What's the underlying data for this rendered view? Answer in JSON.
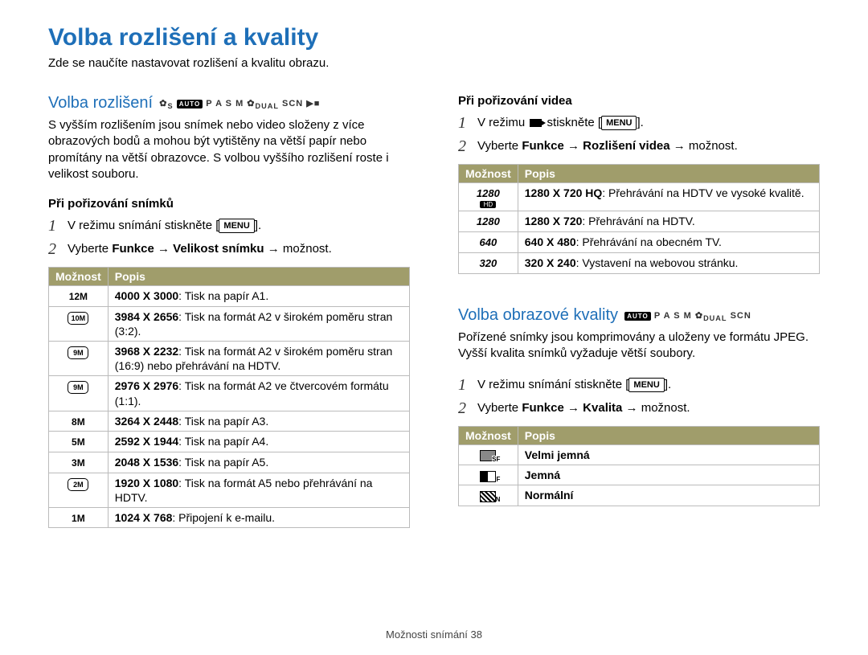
{
  "page": {
    "title": "Volba rozlišení a kvality",
    "intro": "Zde se naučíte nastavovat rozlišení a kvalitu obrazu.",
    "footer_label": "Možnosti snímání",
    "footer_page": "38"
  },
  "left": {
    "section_title": "Volba rozlišení",
    "mode_string": "P A S M",
    "mode_suffix": "SCN",
    "body": "S vyšším rozlišením jsou snímek nebo video složeny z více obrazových bodů a mohou být vytištěny na větší papír nebo promítány na větší obrazovce. S volbou vyššího rozlišení roste i velikost souboru.",
    "sub_heading": "Při pořizování snímků",
    "step1": "V režimu snímání stiskněte",
    "step1_btn": "MENU",
    "step2_pre": "Vyberte ",
    "step2_b1": "Funkce",
    "step2_arrow": " → ",
    "step2_b2": "Velikost snímku",
    "step2_post": " → možnost.",
    "table": {
      "col_option": "Možnost",
      "col_desc": "Popis",
      "rows": [
        {
          "icon": "12M",
          "bold": "4000 X 3000",
          "desc": ": Tisk na papír A1."
        },
        {
          "icon": "10M",
          "boxed": true,
          "bold": "3984 X 2656",
          "desc": ": Tisk na formát A2 v širokém poměru stran (3:2)."
        },
        {
          "icon": "9M",
          "boxed": true,
          "bold": "3968 X 2232",
          "desc": ": Tisk na formát A2 v širokém poměru stran (16:9) nebo přehrávání na HDTV."
        },
        {
          "icon": "9M",
          "boxed": true,
          "bold": "2976 X 2976",
          "desc": ": Tisk na formát A2 ve čtvercovém formátu (1:1)."
        },
        {
          "icon": "8M",
          "bold": "3264 X 2448",
          "desc": ": Tisk na papír A3."
        },
        {
          "icon": "5M",
          "bold": "2592 X 1944",
          "desc": ": Tisk na papír A4."
        },
        {
          "icon": "3M",
          "bold": "2048 X 1536",
          "desc": ": Tisk na papír A5."
        },
        {
          "icon": "2M",
          "boxed": true,
          "bold": "1920 X 1080",
          "desc": ": Tisk na formát A5 nebo přehrávání na HDTV."
        },
        {
          "icon": "1M",
          "bold": "1024 X 768",
          "desc": ": Připojení k e-mailu."
        }
      ]
    }
  },
  "right_video": {
    "sub_heading": "Při pořizování videa",
    "step1_pre": "V režimu ",
    "step1_post": " stiskněte ",
    "step1_btn": "MENU",
    "step2_pre": "Vyberte ",
    "step2_b1": "Funkce",
    "step2_arrow": " → ",
    "step2_b2": "Rozlišení videa",
    "step2_post": " → možnost.",
    "table": {
      "col_option": "Možnost",
      "col_desc": "Popis",
      "rows": [
        {
          "icon": "1280",
          "hd": true,
          "bold": "1280 X 720 HQ",
          "desc": ": Přehrávání na HDTV ve vysoké kvalitě."
        },
        {
          "icon": "1280",
          "bold": "1280 X 720",
          "desc": ": Přehrávání na HDTV."
        },
        {
          "icon": "640",
          "bold": "640 X 480",
          "desc": ": Přehrávání na obecném TV."
        },
        {
          "icon": "320",
          "bold": "320 X 240",
          "desc": ": Vystavení na webovou stránku."
        }
      ]
    }
  },
  "right_quality": {
    "section_title": "Volba obrazové kvality",
    "mode_string": "P A S M",
    "mode_suffix": "SCN",
    "body": "Pořízené snímky jsou komprimovány a uloženy ve formátu JPEG. Vyšší kvalita snímků vyžaduje větší soubory.",
    "step1": "V režimu snímání stiskněte",
    "step1_btn": "MENU",
    "step2_pre": "Vyberte ",
    "step2_b1": "Funkce",
    "step2_arrow": " → ",
    "step2_b2": "Kvalita",
    "step2_post": " → možnost.",
    "table": {
      "col_option": "Možnost",
      "col_desc": "Popis",
      "rows": [
        {
          "qicon": "sf",
          "bold": "Velmi jemná"
        },
        {
          "qicon": "f",
          "bold": "Jemná"
        },
        {
          "qicon": "n",
          "bold": "Normální"
        }
      ]
    }
  },
  "colors": {
    "title_blue": "#1e6fb8",
    "table_header_bg": "#a09d6b",
    "table_header_fg": "#ffffff",
    "border_gray": "#bbbbbb"
  }
}
